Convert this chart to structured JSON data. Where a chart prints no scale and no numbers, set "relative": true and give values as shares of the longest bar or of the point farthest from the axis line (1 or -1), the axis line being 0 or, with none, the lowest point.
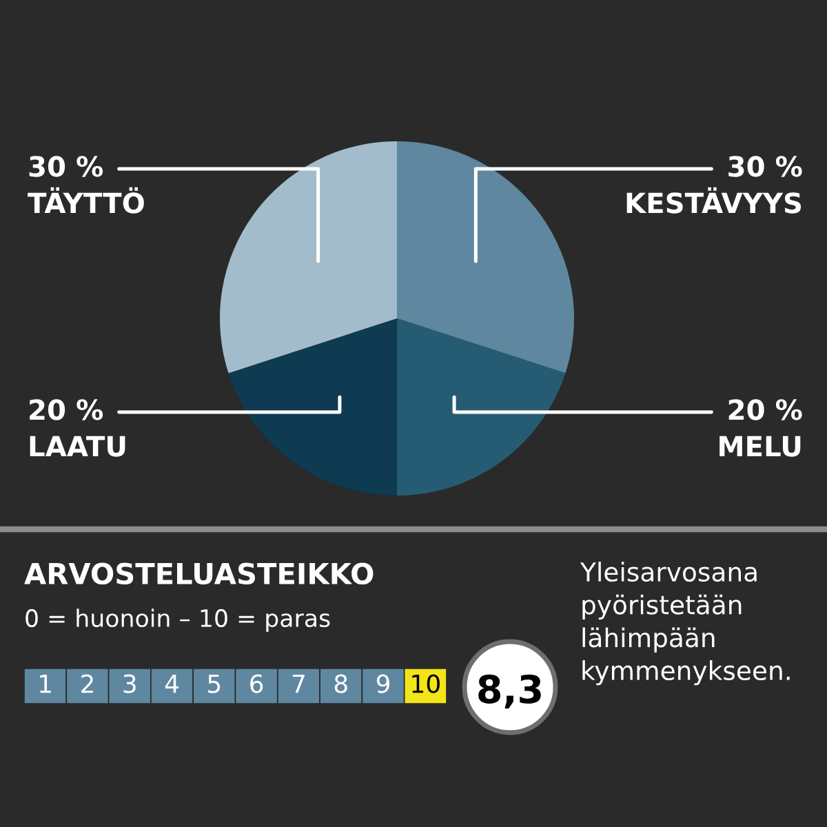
{
  "chart_data": [
    {
      "type": "pie",
      "categories": [
        "KESTÄVYYS",
        "MELU",
        "LAATU",
        "TÄYTTÖ"
      ],
      "values": [
        30,
        20,
        20,
        30
      ],
      "value_labels": [
        "30 %",
        "20 %",
        "20 %",
        "30 %"
      ],
      "colors": [
        "#5f87a0",
        "#265c73",
        "#0e3a52",
        "#a2bccb"
      ]
    },
    {
      "type": "bar",
      "title": "ARVOSTELUASTEIKKO",
      "subtitle": "0 = huonoin – 10 = paras",
      "categories": [
        "1",
        "2",
        "3",
        "4",
        "5",
        "6",
        "7",
        "8",
        "9",
        "10"
      ],
      "values": [
        1,
        1,
        1,
        1,
        1,
        1,
        1,
        1,
        1,
        1
      ],
      "relative": true,
      "colors": [
        "#5f87a0",
        "#5f87a0",
        "#5f87a0",
        "#5f87a0",
        "#5f87a0",
        "#5f87a0",
        "#5f87a0",
        "#5f87a0",
        "#5f87a0",
        "#f3e419"
      ],
      "annotations": [
        "8,3",
        "Yleisarvosana pyöristetään lähimpään kymmenykseen."
      ]
    }
  ]
}
